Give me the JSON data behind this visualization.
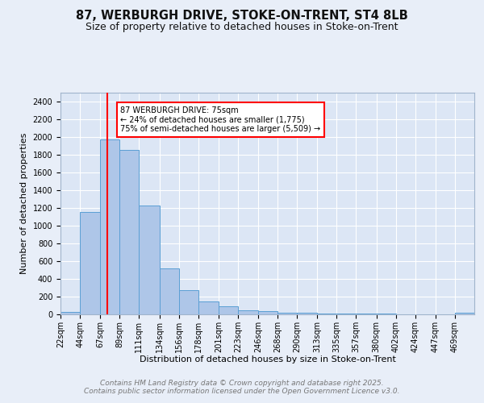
{
  "title_line1": "87, WERBURGH DRIVE, STOKE-ON-TRENT, ST4 8LB",
  "title_line2": "Size of property relative to detached houses in Stoke-on-Trent",
  "xlabel": "Distribution of detached houses by size in Stoke-on-Trent",
  "ylabel": "Number of detached properties",
  "bar_color": "#aec6e8",
  "bar_edge_color": "#5a9fd4",
  "background_color": "#dce6f5",
  "grid_color": "#ffffff",
  "annotation_text": "87 WERBURGH DRIVE: 75sqm\n← 24% of detached houses are smaller (1,775)\n75% of semi-detached houses are larger (5,509) →",
  "annotation_box_color": "#cc0000",
  "redline_x": 75,
  "categories": [
    "22sqm",
    "44sqm",
    "67sqm",
    "89sqm",
    "111sqm",
    "134sqm",
    "156sqm",
    "178sqm",
    "201sqm",
    "223sqm",
    "246sqm",
    "268sqm",
    "290sqm",
    "313sqm",
    "335sqm",
    "357sqm",
    "380sqm",
    "402sqm",
    "424sqm",
    "447sqm",
    "469sqm"
  ],
  "bin_edges": [
    22,
    44,
    67,
    89,
    111,
    134,
    156,
    178,
    201,
    223,
    246,
    268,
    290,
    313,
    335,
    357,
    380,
    402,
    424,
    447,
    469,
    491
  ],
  "values": [
    28,
    1155,
    1975,
    1855,
    1230,
    520,
    275,
    148,
    90,
    45,
    40,
    22,
    18,
    12,
    8,
    6,
    5,
    4,
    3,
    3,
    15
  ],
  "ylim": [
    0,
    2500
  ],
  "yticks": [
    0,
    200,
    400,
    600,
    800,
    1000,
    1200,
    1400,
    1600,
    1800,
    2000,
    2200,
    2400
  ],
  "footer_line1": "Contains HM Land Registry data © Crown copyright and database right 2025.",
  "footer_line2": "Contains public sector information licensed under the Open Government Licence v3.0.",
  "title_fontsize": 10.5,
  "subtitle_fontsize": 9,
  "axis_label_fontsize": 8,
  "tick_fontsize": 7,
  "footer_fontsize": 6.5,
  "fig_bg": "#e8eef8"
}
